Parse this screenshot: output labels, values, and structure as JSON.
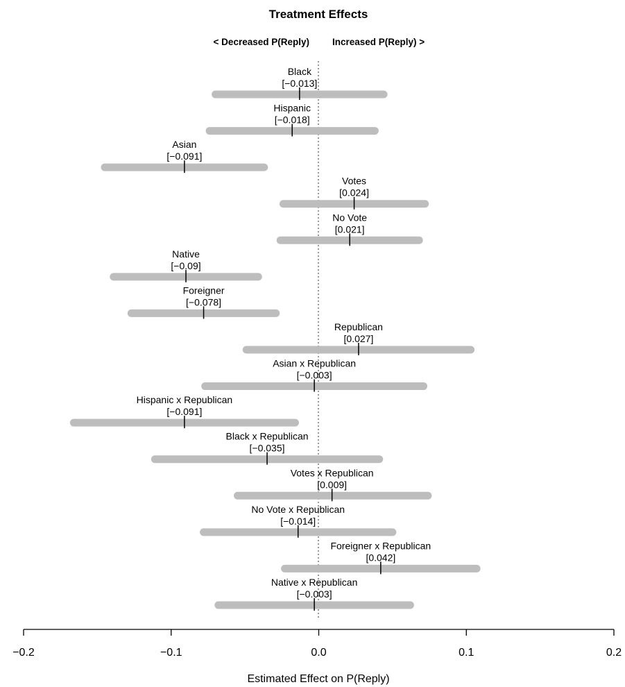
{
  "chart_data": {
    "type": "forest",
    "title": "Treatment Effects",
    "left_direction_label": "< Decreased P(Reply)",
    "right_direction_label": "Increased P(Reply) >",
    "xlabel": "Estimated Effect on P(Reply)",
    "xlim": [
      -0.2,
      0.2
    ],
    "xticks": [
      -0.2,
      -0.1,
      0.0,
      0.1,
      0.2
    ],
    "xtick_labels": [
      "−0.2",
      "−0.1",
      "0.0",
      "0.1",
      "0.2"
    ],
    "reference_line": 0.0,
    "interval_color": "#bdbdbd",
    "effects": [
      {
        "label": "Black",
        "estimate": -0.013,
        "estimate_label": "[−0.013]",
        "lower": -0.07,
        "upper": 0.044
      },
      {
        "label": "Hispanic",
        "estimate": -0.018,
        "estimate_label": "[−0.018]",
        "lower": -0.074,
        "upper": 0.038
      },
      {
        "label": "Asian",
        "estimate": -0.091,
        "estimate_label": "[−0.091]",
        "lower": -0.145,
        "upper": -0.037
      },
      {
        "label": "Votes",
        "estimate": 0.024,
        "estimate_label": "[0.024]",
        "lower": -0.024,
        "upper": 0.072
      },
      {
        "label": "No Vote",
        "estimate": 0.021,
        "estimate_label": "[0.021]",
        "lower": -0.026,
        "upper": 0.068
      },
      {
        "label": "Native",
        "estimate": -0.09,
        "estimate_label": "[−0.09]",
        "lower": -0.139,
        "upper": -0.041
      },
      {
        "label": "Foreigner",
        "estimate": -0.078,
        "estimate_label": "[−0.078]",
        "lower": -0.127,
        "upper": -0.029
      },
      {
        "label": "Republican",
        "estimate": 0.027,
        "estimate_label": "[0.027]",
        "lower": -0.049,
        "upper": 0.103
      },
      {
        "label": "Asian x Republican",
        "estimate": -0.003,
        "estimate_label": "[−0.003]",
        "lower": -0.077,
        "upper": 0.071
      },
      {
        "label": "Hispanic x Republican",
        "estimate": -0.091,
        "estimate_label": "[−0.091]",
        "lower": -0.166,
        "upper": -0.016
      },
      {
        "label": "Black x Republican",
        "estimate": -0.035,
        "estimate_label": "[−0.035]",
        "lower": -0.111,
        "upper": 0.041
      },
      {
        "label": "Votes x Republican",
        "estimate": 0.009,
        "estimate_label": "[0.009]",
        "lower": -0.055,
        "upper": 0.074
      },
      {
        "label": "No Vote x Republican",
        "estimate": -0.014,
        "estimate_label": "[−0.014]",
        "lower": -0.078,
        "upper": 0.05
      },
      {
        "label": "Foreigner x Republican",
        "estimate": 0.042,
        "estimate_label": "[0.042]",
        "lower": -0.023,
        "upper": 0.107
      },
      {
        "label": "Native x Republican",
        "estimate": -0.003,
        "estimate_label": "[−0.003]",
        "lower": -0.068,
        "upper": 0.062
      }
    ]
  }
}
